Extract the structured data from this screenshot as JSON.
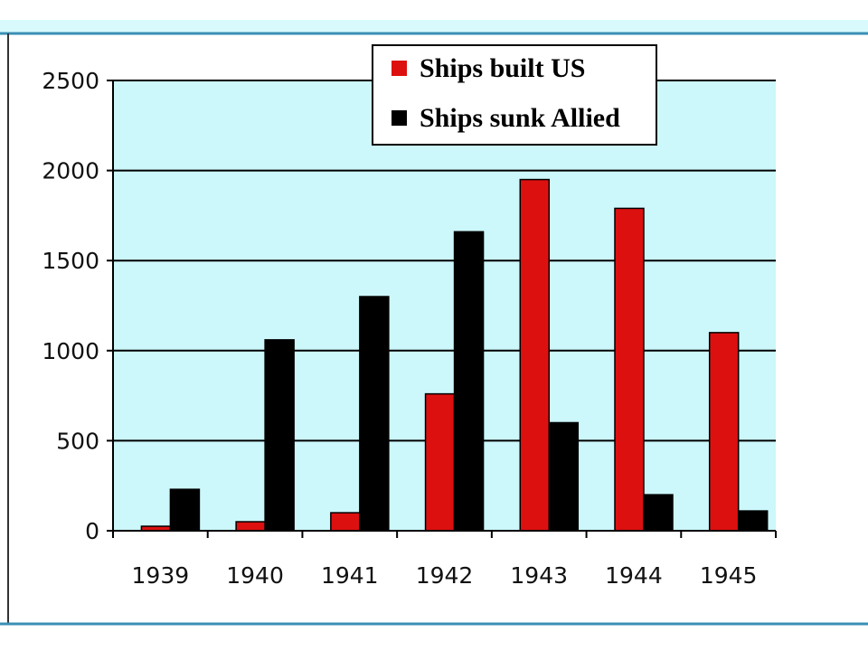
{
  "chart_data": {
    "type": "bar",
    "categories": [
      "1939",
      "1940",
      "1941",
      "1942",
      "1943",
      "1944",
      "1945"
    ],
    "series": [
      {
        "name": "Ships built US",
        "color": "#dd1010",
        "values": [
          25,
          50,
          100,
          760,
          1950,
          1790,
          1100
        ]
      },
      {
        "name": "Ships sunk Allied",
        "color": "#000000",
        "values": [
          230,
          1060,
          1300,
          1660,
          600,
          200,
          110
        ]
      }
    ],
    "ylim": [
      0,
      2500
    ],
    "yticks": [
      "0",
      "500",
      "1000",
      "1500",
      "2000",
      "2500"
    ],
    "grid": true,
    "legend_position": "top-right",
    "plot_background": "#ccf7fb",
    "frame_color": "#3a8fb5"
  }
}
